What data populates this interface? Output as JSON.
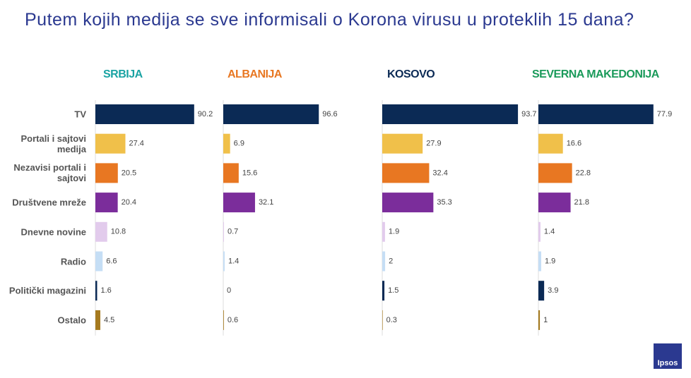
{
  "title": "Putem kojih medija se sve informisali o Korona virusu u proteklih 15 dana?",
  "logo": "Ipsos",
  "chart_data": [
    {
      "type": "bar",
      "title": "SRBIJA",
      "title_color": "#1aa3a3",
      "categories": [
        "TV",
        "Portali i sajtovi medija",
        "Nezavisi portali i sajtovi",
        "Društvene mreže",
        "Dnevne novine",
        "Radio",
        "Politički magazini",
        "Ostalo"
      ],
      "values": [
        90.2,
        27.4,
        20.5,
        20.4,
        10.8,
        6.6,
        1.6,
        4.5
      ],
      "colors": [
        "#0b2a55",
        "#f0c04a",
        "#e87722",
        "#7b2d9b",
        "#e2cbec",
        "#c5def5",
        "#0b2a55",
        "#a57a1f"
      ],
      "xlim": [
        0,
        100
      ]
    },
    {
      "type": "bar",
      "title": "ALBANIJA",
      "title_color": "#e87722",
      "values": [
        96.6,
        6.9,
        15.6,
        32.1,
        0.7,
        1.4,
        0,
        0.6
      ],
      "colors": [
        "#0b2a55",
        "#f0c04a",
        "#e87722",
        "#7b2d9b",
        "#e2cbec",
        "#c5def5",
        "#0b2a55",
        "#a57a1f"
      ],
      "xlim": [
        0,
        100
      ]
    },
    {
      "type": "bar",
      "title": "KOSOVO",
      "title_color": "#0b2a55",
      "values": [
        93.7,
        27.9,
        32.4,
        35.3,
        1.9,
        2,
        1.5,
        0.3
      ],
      "colors": [
        "#0b2a55",
        "#f0c04a",
        "#e87722",
        "#7b2d9b",
        "#e2cbec",
        "#c5def5",
        "#0b2a55",
        "#a57a1f"
      ],
      "xlim": [
        0,
        100
      ]
    },
    {
      "type": "bar",
      "title": "SEVERNA MAKEDONIJA",
      "title_color": "#1a9a5a",
      "values": [
        77.9,
        16.6,
        22.8,
        21.8,
        1.4,
        1.9,
        3.9,
        1
      ],
      "colors": [
        "#0b2a55",
        "#f0c04a",
        "#e87722",
        "#7b2d9b",
        "#e2cbec",
        "#c5def5",
        "#0b2a55",
        "#a57a1f"
      ],
      "xlim": [
        0,
        100
      ]
    }
  ]
}
